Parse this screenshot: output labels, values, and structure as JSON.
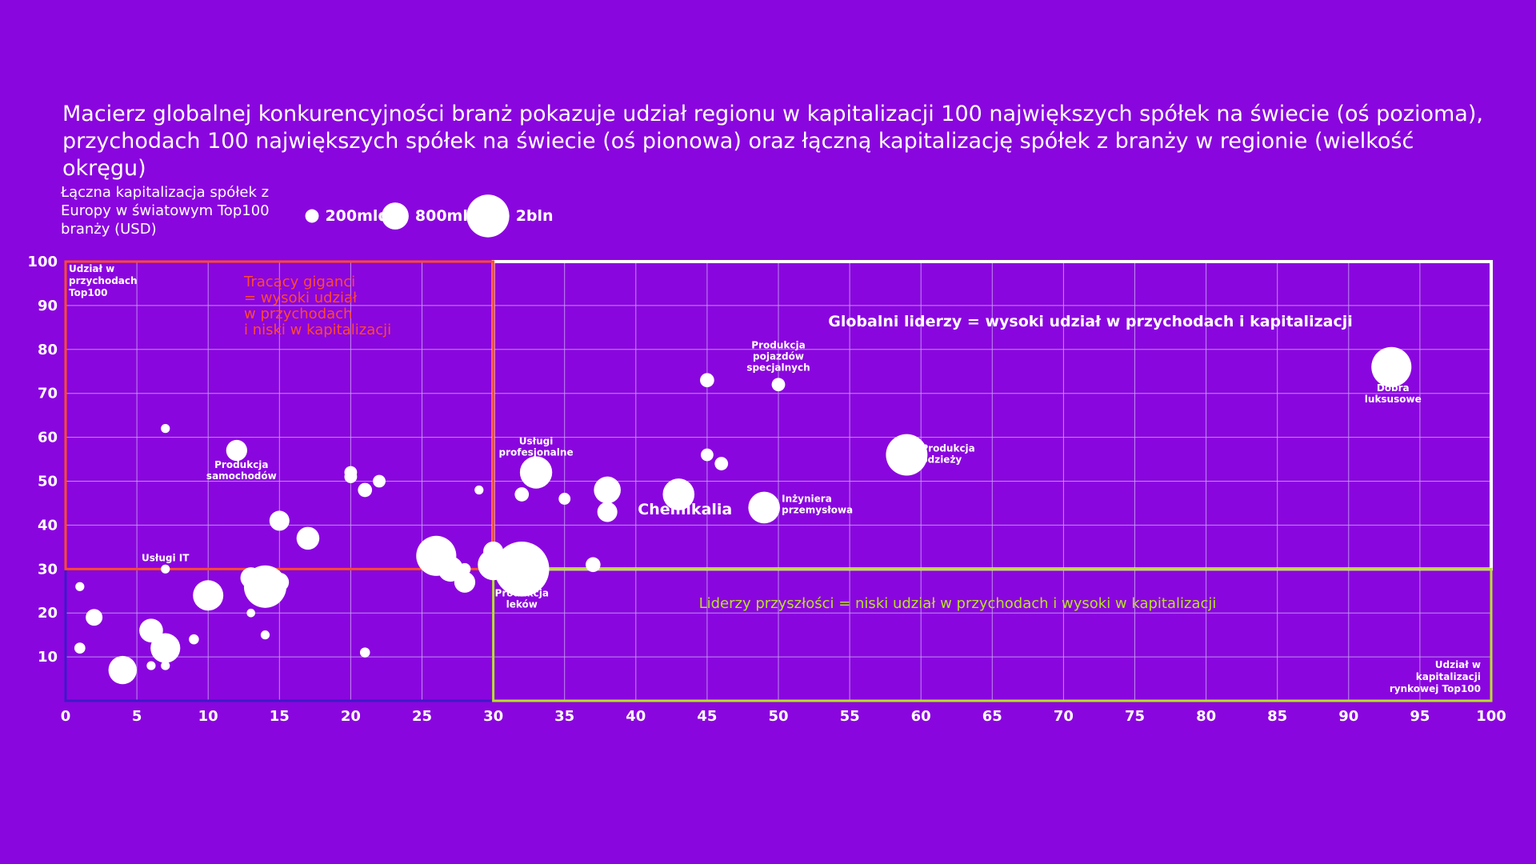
{
  "title_line1": "Macierz globalnej konkurencyjności branż pokazuje udział regionu w kapitalizacji 100 największych spółek na świecie (oś pozioma),",
  "title_line2": "przychodach 100 największych spółek na świecie (oś pionowa) oraz łączną kapitalizację spółek z branży w regionie (wielkość okręgu)",
  "legend": {
    "title": "Łączna kapitalizacja spółek z Europy w światowym Top100 branży (USD)",
    "items": [
      {
        "label": "200mld",
        "value": 200
      },
      {
        "label": "800mld",
        "value": 800
      },
      {
        "label": "2bln",
        "value": 2000
      }
    ]
  },
  "colors": {
    "background": "#8a06de",
    "grid": "#c9a3f2",
    "outline": "#ffffff",
    "losing_giants": "#ff4a2e",
    "future_leaders": "#b8e02a",
    "bottom_left": "#3f18c8",
    "bubble": "#ffffff"
  },
  "chart_data": {
    "type": "scatter",
    "xlim": [
      0,
      100
    ],
    "ylim": [
      0,
      100
    ],
    "x_ticks": [
      0,
      5,
      10,
      15,
      20,
      25,
      30,
      35,
      40,
      45,
      50,
      55,
      60,
      65,
      70,
      75,
      80,
      85,
      90,
      95,
      100
    ],
    "y_ticks": [
      10,
      20,
      30,
      40,
      50,
      60,
      70,
      80,
      90,
      100
    ],
    "grid": true,
    "y_axis_note": "Udział w przychodach Top100",
    "x_axis_note": "Udział w kapitalizacji rynkowej Top100",
    "quadrants": {
      "losing_giants": "Tracący giganci = wysoki udział w przychodach i niski w kapitalizacji",
      "global_leaders": "Globalni liderzy = wysoki udział w przychodach i kapitalizacji",
      "future_leaders": "Liderzy przyszłości = niski udział w przychodach i wysoki w kapitalizacji"
    },
    "points": [
      {
        "x": 7,
        "y": 62,
        "size": 20,
        "label": ""
      },
      {
        "x": 12,
        "y": 57,
        "size": 110,
        "label": "Produkcja samochodów"
      },
      {
        "x": 7,
        "y": 30,
        "size": 20,
        "label": "Usługi IT"
      },
      {
        "x": 1,
        "y": 26,
        "size": 20,
        "label": ""
      },
      {
        "x": 2,
        "y": 19,
        "size": 70,
        "label": ""
      },
      {
        "x": 1,
        "y": 12,
        "size": 30,
        "label": ""
      },
      {
        "x": 4,
        "y": 7,
        "size": 200,
        "label": ""
      },
      {
        "x": 6,
        "y": 16,
        "size": 140,
        "label": ""
      },
      {
        "x": 6,
        "y": 8,
        "size": 20,
        "label": ""
      },
      {
        "x": 7,
        "y": 14,
        "size": 25,
        "label": ""
      },
      {
        "x": 7,
        "y": 12,
        "size": 220,
        "label": ""
      },
      {
        "x": 7,
        "y": 8,
        "size": 20,
        "label": ""
      },
      {
        "x": 9,
        "y": 14,
        "size": 25,
        "label": ""
      },
      {
        "x": 10,
        "y": 24,
        "size": 230,
        "label": ""
      },
      {
        "x": 13,
        "y": 28,
        "size": 110,
        "label": ""
      },
      {
        "x": 13,
        "y": 20,
        "size": 18,
        "label": ""
      },
      {
        "x": 14,
        "y": 26,
        "size": 450,
        "label": ""
      },
      {
        "x": 14,
        "y": 15,
        "size": 20,
        "label": ""
      },
      {
        "x": 15,
        "y": 27,
        "size": 90,
        "label": ""
      },
      {
        "x": 15,
        "y": 41,
        "size": 100,
        "label": ""
      },
      {
        "x": 17,
        "y": 37,
        "size": 130,
        "label": ""
      },
      {
        "x": 20,
        "y": 52,
        "size": 40,
        "label": ""
      },
      {
        "x": 20,
        "y": 51,
        "size": 40,
        "label": ""
      },
      {
        "x": 21,
        "y": 48,
        "size": 50,
        "label": ""
      },
      {
        "x": 22,
        "y": 50,
        "size": 40,
        "label": ""
      },
      {
        "x": 21,
        "y": 11,
        "size": 25,
        "label": ""
      },
      {
        "x": 26,
        "y": 33,
        "size": 400,
        "label": ""
      },
      {
        "x": 27,
        "y": 30,
        "size": 160,
        "label": ""
      },
      {
        "x": 28,
        "y": 30,
        "size": 35,
        "label": ""
      },
      {
        "x": 28,
        "y": 27,
        "size": 110,
        "label": ""
      },
      {
        "x": 29,
        "y": 48,
        "size": 20,
        "label": ""
      },
      {
        "x": 30,
        "y": 34,
        "size": 100,
        "label": ""
      },
      {
        "x": 30,
        "y": 31,
        "size": 240,
        "label": ""
      },
      {
        "x": 32,
        "y": 30,
        "size": 750,
        "label": "Produkcja leków"
      },
      {
        "x": 32,
        "y": 47,
        "size": 50,
        "label": ""
      },
      {
        "x": 33,
        "y": 52,
        "size": 260,
        "label": "Usługi profesjonalne"
      },
      {
        "x": 35,
        "y": 46,
        "size": 35,
        "label": ""
      },
      {
        "x": 37,
        "y": 31,
        "size": 55,
        "label": ""
      },
      {
        "x": 38,
        "y": 48,
        "size": 180,
        "label": ""
      },
      {
        "x": 38,
        "y": 43,
        "size": 100,
        "label": ""
      },
      {
        "x": 43,
        "y": 47,
        "size": 250,
        "label": "Chemikalia"
      },
      {
        "x": 45,
        "y": 73,
        "size": 50,
        "label": ""
      },
      {
        "x": 45,
        "y": 56,
        "size": 40,
        "label": ""
      },
      {
        "x": 46,
        "y": 54,
        "size": 45,
        "label": ""
      },
      {
        "x": 49,
        "y": 44,
        "size": 250,
        "label": "Inżyniera przemysłowa"
      },
      {
        "x": 50,
        "y": 72,
        "size": 45,
        "label": "Produkcja pojazdów specjalnych"
      },
      {
        "x": 59,
        "y": 56,
        "size": 430,
        "label": "Produkcja odzieży"
      },
      {
        "x": 93,
        "y": 76,
        "size": 400,
        "label": "Dobra luksusowe"
      }
    ]
  }
}
